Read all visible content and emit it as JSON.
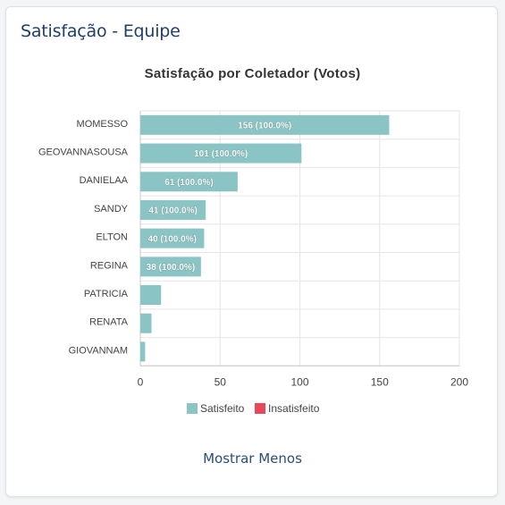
{
  "card": {
    "title": "Satisfação - Equipe"
  },
  "toggle": {
    "label": "Mostrar Menos"
  },
  "colors": {
    "satisfied": "#8ac4c4",
    "unsatisfied": "#e8475c",
    "title": "#1f3f68",
    "link": "#2a4f7a"
  },
  "chart_data": {
    "type": "bar",
    "orientation": "horizontal",
    "stacked": true,
    "title": "Satisfação por Coletador (Votos)",
    "categories": [
      "MOMESSO",
      "GEOVANNASOUSA",
      "DANIELAA",
      "SANDY",
      "ELTON",
      "REGINA",
      "PATRICIA",
      "RENATA",
      "GIOVANNAM"
    ],
    "series": [
      {
        "name": "Satisfeito",
        "color": "#8ac4c4",
        "values": [
          156,
          101,
          61,
          41,
          40,
          38,
          13,
          7,
          3
        ]
      },
      {
        "name": "Insatisfeito",
        "color": "#e8475c",
        "values": [
          0,
          0,
          0,
          0,
          0,
          0,
          0,
          0,
          0
        ]
      }
    ],
    "data_labels": [
      "156 (100.0%)",
      "101 (100.0%)",
      "61 (100.0%)",
      "41 (100.0%)",
      "40 (100.0%)",
      "38 (100.0%)",
      "",
      "",
      ""
    ],
    "xlim": [
      0,
      200
    ],
    "xticks": [
      0,
      50,
      100,
      150,
      200
    ],
    "xlabel": "",
    "ylabel": "",
    "grid": true,
    "legend_position": "bottom"
  }
}
